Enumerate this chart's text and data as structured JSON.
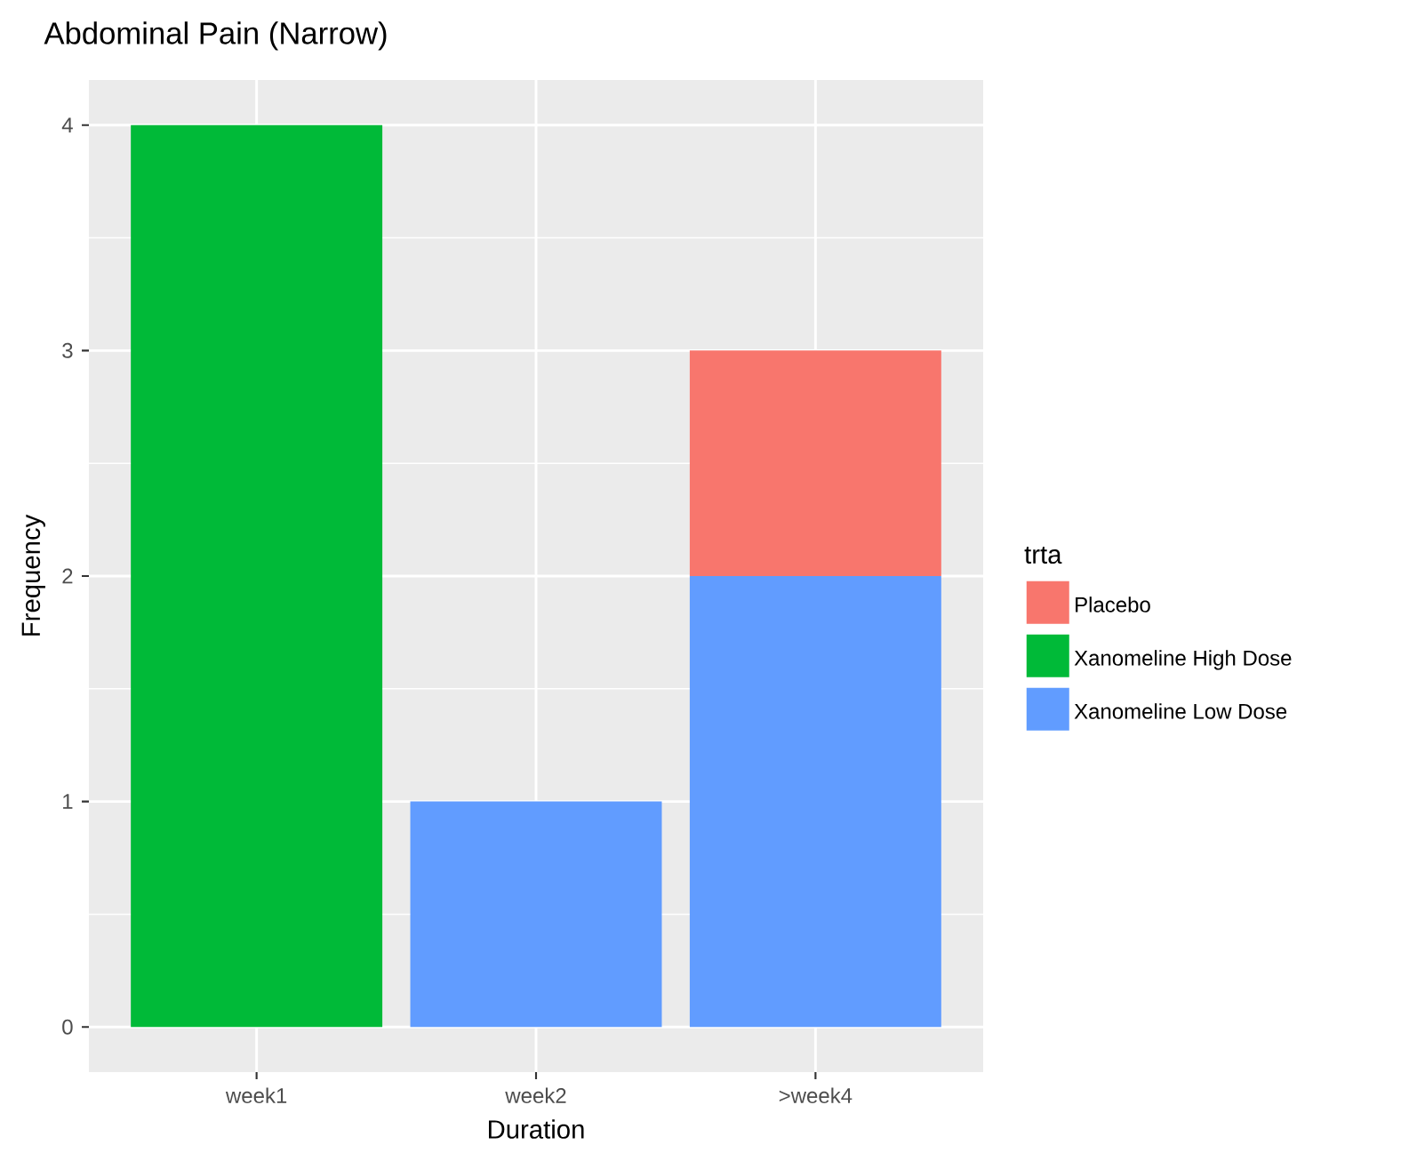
{
  "chart_data": {
    "type": "bar",
    "title": "Abdominal Pain (Narrow)",
    "xlabel": "Duration",
    "ylabel": "Frequency",
    "legend_title": "trta",
    "categories": [
      "week1",
      "week2",
      ">week4"
    ],
    "stacked": true,
    "series": [
      {
        "name": "Xanomeline Low Dose",
        "color": "#619cff",
        "values": [
          0,
          1,
          2
        ]
      },
      {
        "name": "Xanomeline High Dose",
        "color": "#00ba38",
        "values": [
          4,
          0,
          0
        ]
      },
      {
        "name": "Placebo",
        "color": "#f8766d",
        "values": [
          0,
          0,
          1
        ]
      }
    ],
    "ylim": [
      -0.2,
      4.2
    ],
    "yticks": [
      0,
      1,
      2,
      3,
      4
    ],
    "grid": true,
    "legend": "right"
  }
}
